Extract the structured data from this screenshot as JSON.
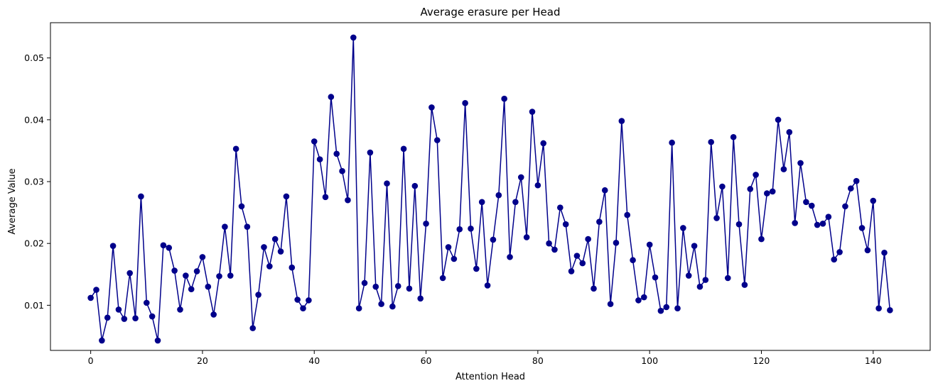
{
  "chart_data": {
    "type": "line",
    "title": "Average erasure per Head",
    "xlabel": "Attention Head",
    "ylabel": "Average Value",
    "xlim": [
      -7.2,
      150.2
    ],
    "ylim": [
      0.0027,
      0.0557
    ],
    "xticks": [
      0,
      20,
      40,
      60,
      80,
      100,
      120,
      140
    ],
    "xtick_labels": [
      "0",
      "20",
      "40",
      "60",
      "80",
      "100",
      "120",
      "140"
    ],
    "yticks": [
      0.01,
      0.02,
      0.03,
      0.04,
      0.05
    ],
    "ytick_labels": [
      "0.01",
      "0.02",
      "0.03",
      "0.04",
      "0.05"
    ],
    "grid": false,
    "marker": "circle",
    "color": "#00008b",
    "series": [
      {
        "values": [
          0.0112,
          0.0125,
          0.0043,
          0.008,
          0.0196,
          0.0093,
          0.0078,
          0.0152,
          0.0079,
          0.0276,
          0.0104,
          0.0082,
          0.0043,
          0.0197,
          0.0193,
          0.0156,
          0.0093,
          0.0148,
          0.0126,
          0.0155,
          0.0178,
          0.013,
          0.0085,
          0.0147,
          0.0227,
          0.0148,
          0.0353,
          0.026,
          0.0227,
          0.0063,
          0.0117,
          0.0194,
          0.0163,
          0.0207,
          0.0187,
          0.0276,
          0.0161,
          0.0109,
          0.0095,
          0.0108,
          0.0365,
          0.0336,
          0.0275,
          0.0437,
          0.0345,
          0.0317,
          0.027,
          0.0533,
          0.0095,
          0.0136,
          0.0347,
          0.013,
          0.0102,
          0.0297,
          0.0098,
          0.0131,
          0.0353,
          0.0127,
          0.0293,
          0.0111,
          0.0232,
          0.042,
          0.0367,
          0.0144,
          0.0194,
          0.0175,
          0.0223,
          0.0427,
          0.0224,
          0.0159,
          0.0267,
          0.0132,
          0.0206,
          0.0278,
          0.0434,
          0.0178,
          0.0267,
          0.0307,
          0.021,
          0.0413,
          0.0294,
          0.0362,
          0.02,
          0.019,
          0.0258,
          0.0231,
          0.0155,
          0.018,
          0.0168,
          0.0207,
          0.0127,
          0.0235,
          0.0286,
          0.0102,
          0.0201,
          0.0398,
          0.0246,
          0.0173,
          0.0108,
          0.0113,
          0.0198,
          0.0145,
          0.0091,
          0.0097,
          0.0363,
          0.0095,
          0.0225,
          0.0148,
          0.0196,
          0.013,
          0.0141,
          0.0364,
          0.0241,
          0.0292,
          0.0144,
          0.0372,
          0.0231,
          0.0133,
          0.0288,
          0.0311,
          0.0207,
          0.0281,
          0.0284,
          0.04,
          0.032,
          0.038,
          0.0233,
          0.033,
          0.0267,
          0.0261,
          0.023,
          0.0232,
          0.0243,
          0.0174,
          0.0186,
          0.026,
          0.0289,
          0.0301,
          0.0225,
          0.0189,
          0.0269,
          0.0095,
          0.0185,
          0.0092
        ]
      }
    ]
  }
}
